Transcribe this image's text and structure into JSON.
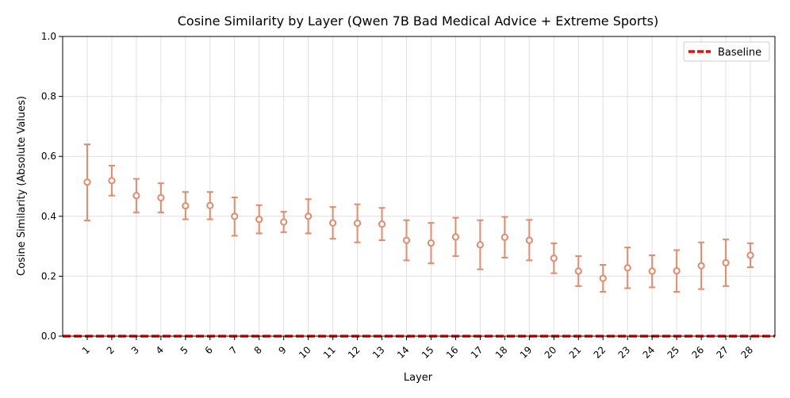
{
  "chart_data": {
    "type": "errorbar",
    "title": "Cosine Similarity by Layer (Qwen 7B Bad Medical Advice + Extreme Sports)",
    "xlabel": "Layer",
    "ylabel": "Cosine Similarity (Absolute Values)",
    "ylim": [
      0.0,
      1.0
    ],
    "xlim": [
      0.0,
      29.0
    ],
    "yticks": [
      "0.0",
      "0.2",
      "0.4",
      "0.6",
      "0.8",
      "1.0"
    ],
    "grid": true,
    "legend_position": "top-right",
    "categories": [
      "1",
      "2",
      "3",
      "4",
      "5",
      "6",
      "7",
      "8",
      "9",
      "10",
      "11",
      "12",
      "13",
      "14",
      "15",
      "16",
      "17",
      "18",
      "19",
      "20",
      "21",
      "22",
      "23",
      "24",
      "25",
      "26",
      "27",
      "28"
    ],
    "series": [
      {
        "name": "Cosine similarity",
        "color": "#e8896a",
        "values": [
          0.514,
          0.519,
          0.469,
          0.462,
          0.435,
          0.436,
          0.4,
          0.39,
          0.381,
          0.4,
          0.378,
          0.377,
          0.374,
          0.32,
          0.311,
          0.331,
          0.305,
          0.33,
          0.32,
          0.26,
          0.217,
          0.193,
          0.228,
          0.217,
          0.218,
          0.235,
          0.245,
          0.27
        ],
        "err_low": [
          0.386,
          0.469,
          0.413,
          0.413,
          0.39,
          0.39,
          0.335,
          0.343,
          0.347,
          0.343,
          0.325,
          0.313,
          0.32,
          0.253,
          0.243,
          0.267,
          0.223,
          0.262,
          0.253,
          0.21,
          0.167,
          0.148,
          0.16,
          0.163,
          0.148,
          0.157,
          0.167,
          0.23
        ],
        "err_high": [
          0.64,
          0.569,
          0.525,
          0.51,
          0.481,
          0.481,
          0.463,
          0.437,
          0.415,
          0.457,
          0.431,
          0.44,
          0.428,
          0.387,
          0.378,
          0.395,
          0.387,
          0.398,
          0.388,
          0.31,
          0.267,
          0.238,
          0.296,
          0.27,
          0.287,
          0.313,
          0.323,
          0.31
        ]
      }
    ],
    "baseline": {
      "name": "Baseline",
      "value": 0.0,
      "color": "#ff0000"
    }
  }
}
